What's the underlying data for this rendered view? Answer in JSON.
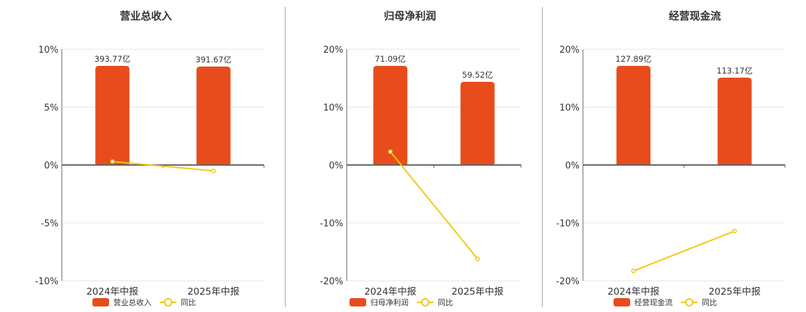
{
  "colors": {
    "bar": "#e84c1c",
    "line": "#f2c811",
    "grid": "#e1e6ee",
    "axis": "#666666",
    "text": "#333333",
    "divider": "#a8a8a8"
  },
  "panels": [
    {
      "title": "营业总收入",
      "legend": {
        "bar_label": "营业总收入",
        "line_label": "同比"
      }
    },
    {
      "title": "归母净利润",
      "legend": {
        "bar_label": "归母净利润",
        "line_label": "同比"
      }
    },
    {
      "title": "经营现金流",
      "legend": {
        "bar_label": "经营现金流",
        "line_label": "同比"
      }
    }
  ],
  "chart_data": [
    {
      "type": "bar+line",
      "title": "营业总收入",
      "categories": [
        "2024年中报",
        "2025年中报"
      ],
      "series": [
        {
          "name": "营业总收入",
          "type": "bar",
          "values": [
            393.77,
            391.67
          ],
          "labels": [
            "393.77亿",
            "391.67亿"
          ],
          "unit": "亿"
        },
        {
          "name": "同比",
          "type": "line",
          "values": [
            0.3,
            -0.5
          ],
          "unit": "%"
        }
      ],
      "yticks": [
        "10%",
        "5%",
        "0%",
        "-5%",
        "-10%"
      ],
      "ylim": [
        -10,
        10
      ],
      "grid": true,
      "legend_position": "bottom"
    },
    {
      "type": "bar+line",
      "title": "归母净利润",
      "categories": [
        "2024年中报",
        "2025年中报"
      ],
      "series": [
        {
          "name": "归母净利润",
          "type": "bar",
          "values": [
            71.09,
            59.52
          ],
          "labels": [
            "71.09亿",
            "59.52亿"
          ],
          "unit": "亿"
        },
        {
          "name": "同比",
          "type": "line",
          "values": [
            2.3,
            -16.2
          ],
          "unit": "%"
        }
      ],
      "yticks": [
        "20%",
        "10%",
        "0%",
        "-10%",
        "-20%"
      ],
      "ylim": [
        -20,
        20
      ],
      "grid": true,
      "legend_position": "bottom"
    },
    {
      "type": "bar+line",
      "title": "经营现金流",
      "categories": [
        "2024年中报",
        "2025年中报"
      ],
      "series": [
        {
          "name": "经营现金流",
          "type": "bar",
          "values": [
            127.89,
            113.17
          ],
          "labels": [
            "127.89亿",
            "113.17亿"
          ],
          "unit": "亿"
        },
        {
          "name": "同比",
          "type": "line",
          "values": [
            -18.3,
            -11.4
          ],
          "unit": "%"
        }
      ],
      "yticks": [
        "20%",
        "10%",
        "0%",
        "-10%",
        "-20%"
      ],
      "ylim": [
        -20,
        20
      ],
      "grid": true,
      "legend_position": "bottom"
    }
  ]
}
